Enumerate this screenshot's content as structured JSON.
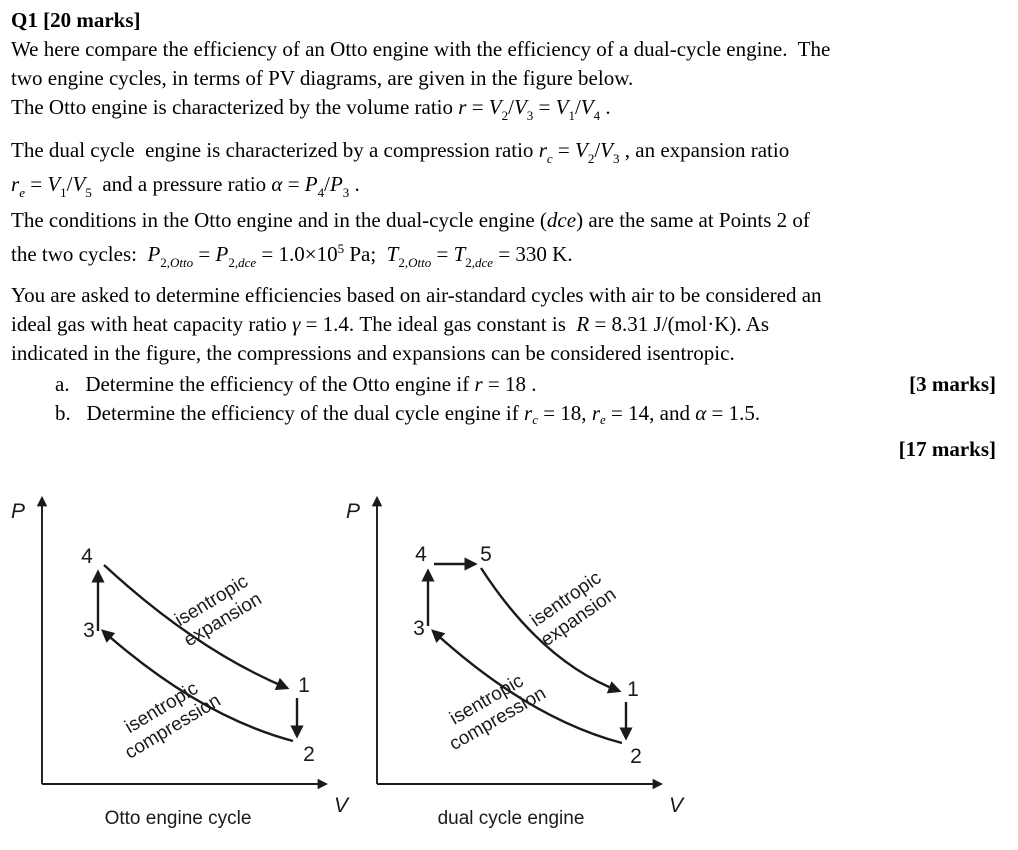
{
  "page": {
    "background": "#ffffff",
    "ink": "#1a1a1a"
  },
  "question": {
    "lines": [
      {
        "type": "body",
        "segments": [
          {
            "t": "Q1 [20 marks]",
            "s": "b"
          }
        ]
      },
      {
        "type": "body",
        "segments": [
          {
            "t": "We here compare the efficiency of an Otto engine with the efficiency of a dual-cycle engine.  The",
            "s": "r"
          }
        ]
      },
      {
        "type": "body",
        "segments": [
          {
            "t": "two engine cycles, in terms of PV diagrams, are given in the figure below.",
            "s": "r"
          }
        ]
      },
      {
        "type": "body",
        "segments": [
          {
            "t": "The Otto engine is characterized by the volume ratio ",
            "s": "r"
          },
          {
            "t": "r",
            "s": "i"
          },
          {
            "t": " = ",
            "s": "r"
          },
          {
            "t": "V",
            "s": "i"
          },
          {
            "t": "2",
            "s": "sub"
          },
          {
            "t": "/",
            "s": "r"
          },
          {
            "t": "V",
            "s": "i"
          },
          {
            "t": "3",
            "s": "sub"
          },
          {
            "t": " = ",
            "s": "r"
          },
          {
            "t": "V",
            "s": "i"
          },
          {
            "t": "1",
            "s": "sub"
          },
          {
            "t": "/",
            "s": "r"
          },
          {
            "t": "V",
            "s": "i"
          },
          {
            "t": "4",
            "s": "sub"
          },
          {
            "t": " .",
            "s": "r"
          }
        ]
      },
      {
        "type": "body",
        "segments": [
          {
            "t": "The dual cycle  engine is characterized by a compression ratio ",
            "s": "r"
          },
          {
            "t": "r",
            "s": "i"
          },
          {
            "t": "c",
            "s": "subi"
          },
          {
            "t": " = ",
            "s": "r"
          },
          {
            "t": "V",
            "s": "i"
          },
          {
            "t": "2",
            "s": "sub"
          },
          {
            "t": "/",
            "s": "r"
          },
          {
            "t": "V",
            "s": "i"
          },
          {
            "t": "3",
            "s": "sub"
          },
          {
            "t": " , an expansion ratio",
            "s": "r"
          }
        ]
      },
      {
        "type": "body",
        "segments": [
          {
            "t": "r",
            "s": "i"
          },
          {
            "t": "e",
            "s": "subi"
          },
          {
            "t": " = ",
            "s": "r"
          },
          {
            "t": "V",
            "s": "i"
          },
          {
            "t": "1",
            "s": "sub"
          },
          {
            "t": "/",
            "s": "r"
          },
          {
            "t": "V",
            "s": "i"
          },
          {
            "t": "5",
            "s": "sub"
          },
          {
            "t": "  and a pressure ratio ",
            "s": "r"
          },
          {
            "t": "α",
            "s": "i"
          },
          {
            "t": " = ",
            "s": "r"
          },
          {
            "t": "P",
            "s": "i"
          },
          {
            "t": "4",
            "s": "sub"
          },
          {
            "t": "/",
            "s": "r"
          },
          {
            "t": "P",
            "s": "i"
          },
          {
            "t": "3",
            "s": "sub"
          },
          {
            "t": " .",
            "s": "r"
          }
        ]
      },
      {
        "type": "body",
        "segments": [
          {
            "t": "The conditions in the Otto engine and in the dual-cycle engine (",
            "s": "r"
          },
          {
            "t": "dce",
            "s": "i"
          },
          {
            "t": ") are the same at Points 2 of",
            "s": "r"
          }
        ]
      },
      {
        "type": "body",
        "segments": [
          {
            "t": "the two cycles:  ",
            "s": "r"
          },
          {
            "t": "P",
            "s": "i"
          },
          {
            "t": "2,",
            "s": "sub"
          },
          {
            "t": "Otto",
            "s": "subi"
          },
          {
            "t": " = ",
            "s": "r"
          },
          {
            "t": "P",
            "s": "i"
          },
          {
            "t": "2,",
            "s": "sub"
          },
          {
            "t": "dce",
            "s": "subi"
          },
          {
            "t": " = 1.0×10",
            "s": "r"
          },
          {
            "t": "5",
            "s": "sup"
          },
          {
            "t": " Pa;  ",
            "s": "r"
          },
          {
            "t": "T",
            "s": "i"
          },
          {
            "t": "2,",
            "s": "sub"
          },
          {
            "t": "Otto",
            "s": "subi"
          },
          {
            "t": " = ",
            "s": "r"
          },
          {
            "t": "T",
            "s": "i"
          },
          {
            "t": "2,",
            "s": "sub"
          },
          {
            "t": "dce",
            "s": "subi"
          },
          {
            "t": " = 330 K.",
            "s": "r"
          }
        ]
      },
      {
        "type": "body",
        "segments": [
          {
            "t": "You are asked to determine efficiencies based on air-standard cycles with air to be considered an",
            "s": "r"
          }
        ]
      },
      {
        "type": "body",
        "segments": [
          {
            "t": "ideal gas with heat capacity ratio ",
            "s": "r"
          },
          {
            "t": "γ",
            "s": "i"
          },
          {
            "t": " = 1.4. The ideal gas constant is  ",
            "s": "r"
          },
          {
            "t": "R",
            "s": "i"
          },
          {
            "t": " = 8.31 J/(mol·K). As",
            "s": "r"
          }
        ]
      },
      {
        "type": "body",
        "segments": [
          {
            "t": "indicated in the figure, the compressions and expansions can be considered isentropic.",
            "s": "r"
          }
        ]
      },
      {
        "type": "item",
        "right": "[3 marks]",
        "segments": [
          {
            "t": "a.   Determine the efficiency of the Otto engine if ",
            "s": "r"
          },
          {
            "t": "r",
            "s": "i"
          },
          {
            "t": " = 18 .",
            "s": "r"
          }
        ]
      },
      {
        "type": "item",
        "segments": [
          {
            "t": "b.   Determine the efficiency of the dual cycle engine if ",
            "s": "r"
          },
          {
            "t": "r",
            "s": "i"
          },
          {
            "t": "c",
            "s": "subi"
          },
          {
            "t": " = 18, ",
            "s": "r"
          },
          {
            "t": "r",
            "s": "i"
          },
          {
            "t": "e",
            "s": "subi"
          },
          {
            "t": " = 14, and ",
            "s": "r"
          },
          {
            "t": "α",
            "s": "i"
          },
          {
            "t": " = 1.5.",
            "s": "r"
          }
        ]
      },
      {
        "type": "marks-right",
        "segments": [
          {
            "t": "[17 marks]",
            "s": "b"
          }
        ]
      }
    ]
  },
  "figures": [
    {
      "caption": "Otto engine cycle",
      "pressure_axis": "P",
      "volume_axis": "V",
      "point_1": "1",
      "point_2": "2",
      "point_3": "3",
      "point_4": "4",
      "expansion_label": [
        "isentropic",
        "expansion"
      ],
      "compression_label": [
        "isentropic",
        "compression"
      ]
    },
    {
      "caption": "dual cycle engine",
      "pressure_axis": "P",
      "volume_axis": "V",
      "point_1": "1",
      "point_2": "2",
      "point_3": "3",
      "point_4": "4",
      "point_5": "5",
      "expansion_label": [
        "isentropic",
        "expansion"
      ],
      "compression_label": [
        "isentropic",
        "compression"
      ]
    }
  ]
}
